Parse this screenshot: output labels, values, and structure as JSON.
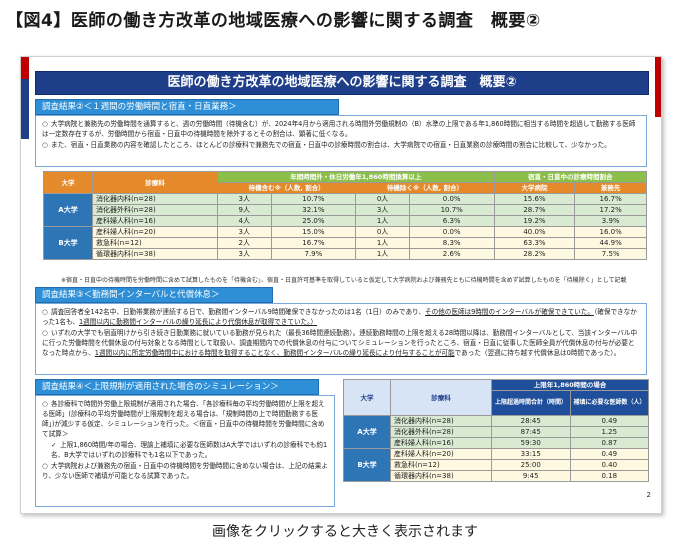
{
  "figure_title": "【図4】医師の働き方改革の地域医療への影響に関する調査　概要②",
  "caption": "画像をクリックすると大きく表示されます",
  "slide": {
    "title": "医師の働き方改革の地域医療への影響に関する調査　概要②",
    "page_number": "2",
    "section1": {
      "heading": "調査結果②＜１週間の労働時間と宿直・日直業務＞",
      "bullets": [
        "大学病院と兼務先の労働時間を通算すると、週の労働時間（待機含む）が、2024年4月から適用される時間外労働規制の（B）水準の上限である年1,860時間に相当する時間を超過して勤務する医師は一定数存在するが、労働時間から宿直・日直中の待機時間を除外するとその割合は、顕著に低くなる。",
        "また、宿直・日直業務の内容を確認したところ、ほとんどの診療科で兼務先での宿直・日直中の診療時間の割合は、大学病院での宿直・日直業務の診療時間の割合に比較して、少なかった。"
      ],
      "table": {
        "group_header_1": "年間時間外・休日労働年1,860時間換算以上",
        "group_header_2": "宿直・日直中の診療時間割合",
        "col_univ": "大学",
        "col_dept": "診療科",
        "col_wait_incl": "待機含む※（人数, 割合）",
        "col_wait_excl": "待機除く※（人数, 割合）",
        "col_univ_hosp": "大学病院",
        "col_other": "兼務先",
        "groups": [
          {
            "label": "A大学",
            "rows": [
              {
                "dept": "消化器内科(n=28)",
                "in_n": "3人",
                "in_p": "10.7%",
                "ex_n": "0人",
                "ex_p": "0.0%",
                "u": "15.6%",
                "o": "16.7%"
              },
              {
                "dept": "消化器外科(n=28)",
                "in_n": "9人",
                "in_p": "32.1%",
                "ex_n": "3人",
                "ex_p": "10.7%",
                "u": "28.7%",
                "o": "17.2%"
              },
              {
                "dept": "産科婦人科(n=16)",
                "in_n": "4人",
                "in_p": "25.0%",
                "ex_n": "1人",
                "ex_p": "6.3%",
                "u": "19.2%",
                "o": "3.9%"
              }
            ]
          },
          {
            "label": "B大学",
            "rows": [
              {
                "dept": "産科婦人科(n=20)",
                "in_n": "3人",
                "in_p": "15.0%",
                "ex_n": "0人",
                "ex_p": "0.0%",
                "u": "40.0%",
                "o": "16.0%"
              },
              {
                "dept": "救急科(n=12)",
                "in_n": "2人",
                "in_p": "16.7%",
                "ex_n": "1人",
                "ex_p": "8.3%",
                "u": "63.3%",
                "o": "44.9%"
              },
              {
                "dept": "循環器内科(n=38)",
                "in_n": "3人",
                "in_p": "7.9%",
                "ex_n": "1人",
                "ex_p": "2.6%",
                "u": "28.2%",
                "o": "7.5%"
              }
            ]
          }
        ]
      },
      "note": "※宿直・日直中の待機時間を労働時間に含めて試算したものを「待機含む」、宿直・日直許可基準を取得していると仮定して大学病院および兼務先ともに待機時間を含めず試算したものを「待機除く」として記載"
    },
    "section2": {
      "heading": "調査結果③＜勤務間インターバルと代償休息＞",
      "p1_a": "調査回答者全142名中、日勤帯業務が連続する日で、勤務間インターバル9時間確保できなかったのは1名（1日）のみであり、",
      "p1_b": "その他の医師は9時間のインターバルが確保できていた。",
      "p1_c": "（確保できなかった1名も、",
      "p1_d": "1週間以内に勤務間インターバルの繰り延長により代償休息が取得できていた。）",
      "p2_a": "いずれの大学でも宿直明けから引き続き日勤業務に就いている勤務が見られた（最長36時間連続勤務）。連続勤務時間の上限を超える28時間以降は、勤務間インターバルとして、当該インターバル中に行った労働時間を代償休息の付与対象となる時間として取扱い、調査期間内での代償休息の付与についてシミュレーションを行ったところ、宿直・日直に従事した医師全員が代償休息の付与が必要となった時点から、",
      "p2_b": "1週間以内に所定労働時間中における時間を取得することなく、勤務間インターバルの繰り延長により付与することが可能",
      "p2_c": "であった（翌週に持ち越す代償休息は0時間であった）。"
    },
    "section3": {
      "heading": "調査結果④＜上限規制が適用された場合のシミュレーション＞",
      "b1": "各診療科で時間外労働上限規制が適用された場合、「各診療科毎の平均労働時間が上限を超える医師」(診療科の平均労働時間が上限規制を超える場合は、「規制時間の上で時間勤務する医師」)が減少する仮定、シミュレーションを行った。＜宿直・日直中の待機時間を労働時間に含めて試算＞",
      "b1_check": "上限1,860時間/年の場合、理論上補填に必要な医師数はA大学ではいずれの診療科でも約1名、B大学ではいずれの診療科でも1名以下であった。",
      "b2": "大学病院および兼務先の宿直・日直中の待機時間を労働時間に含めない場合は、上記の結果より、少ない医師で補填が可能となる試算であった。",
      "table": {
        "top_header": "上限年1,860時間の場合",
        "col_univ": "大学",
        "col_dept": "診療科",
        "col_avg": "上限超過時間合計（時間）",
        "col_need": "補填に必要な医師数（人）",
        "groups": [
          {
            "label": "A大学",
            "rows": [
              {
                "dept": "消化器内科(n=28)",
                "h": "28:45",
                "d": "0.49"
              },
              {
                "dept": "消化器外科(n=28)",
                "h": "87:45",
                "d": "1.25"
              },
              {
                "dept": "産科婦人科(n=16)",
                "h": "59:30",
                "d": "0.87"
              }
            ]
          },
          {
            "label": "B大学",
            "rows": [
              {
                "dept": "産科婦人科(n=20)",
                "h": "33:15",
                "d": "0.49"
              },
              {
                "dept": "救急科(n=12)",
                "h": "25:00",
                "d": "0.40"
              },
              {
                "dept": "循環器内科(n=38)",
                "h": "9:45",
                "d": "0.18"
              }
            ]
          }
        ]
      }
    }
  }
}
